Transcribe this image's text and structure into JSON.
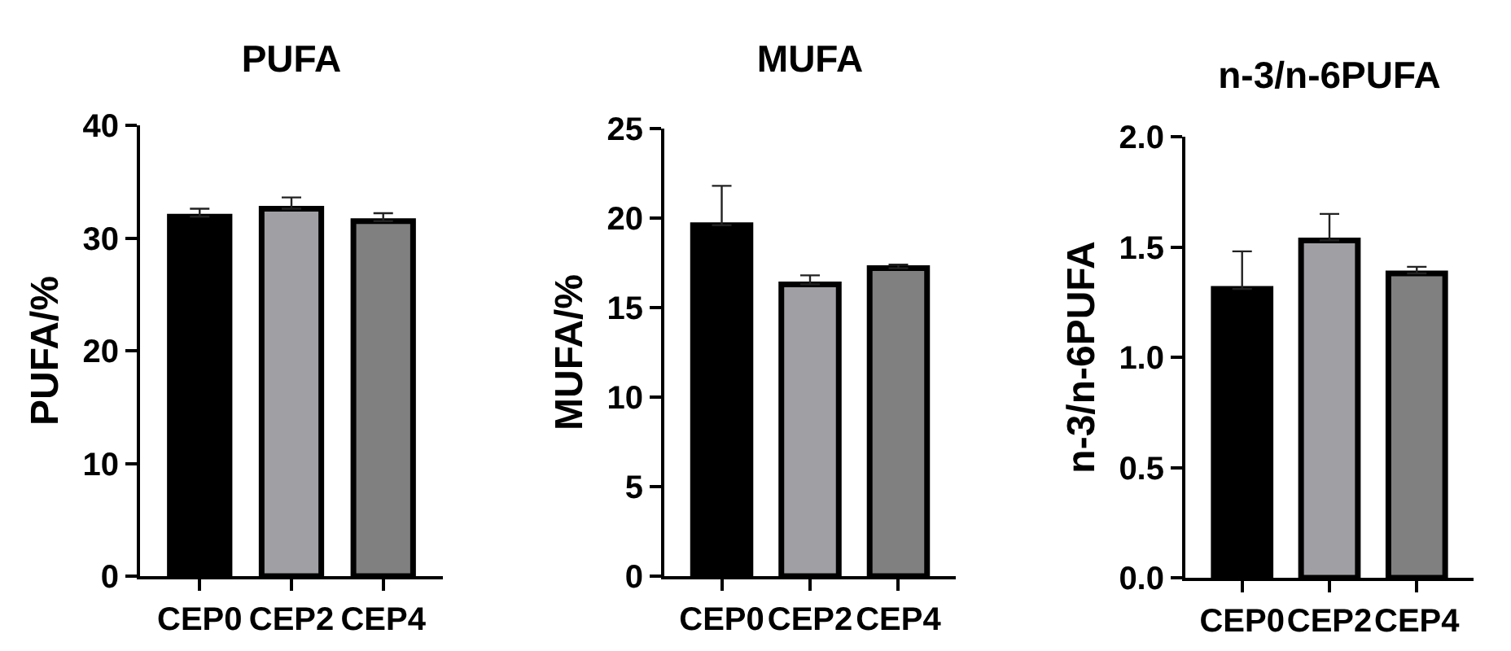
{
  "chart_data": [
    {
      "type": "bar",
      "title": "PUFA",
      "ylabel": "PUFA/%",
      "categories": [
        "CEP0",
        "CEP2",
        "CEP4"
      ],
      "values": [
        31.9,
        32.6,
        31.5
      ],
      "colors": [
        "#000000",
        "#a0a0a4",
        "#808080"
      ],
      "errors": [
        [
          31.9,
          32.6
        ],
        [
          32.6,
          33.6
        ],
        [
          31.5,
          32.2
        ]
      ],
      "ylim": [
        0,
        40
      ],
      "yticks": [
        0,
        10,
        20,
        30,
        40
      ]
    },
    {
      "type": "bar",
      "title": "MUFA",
      "ylabel": "MUFA/%",
      "categories": [
        "CEP0",
        "CEP2",
        "CEP4"
      ],
      "values": [
        19.6,
        16.3,
        17.2
      ],
      "colors": [
        "#000000",
        "#a0a0a4",
        "#808080"
      ],
      "errors": [
        [
          19.6,
          21.8
        ],
        [
          16.3,
          16.8
        ],
        [
          17.2,
          17.4
        ]
      ],
      "ylim": [
        0,
        25
      ],
      "yticks": [
        0,
        5,
        10,
        15,
        20,
        25
      ]
    },
    {
      "type": "bar",
      "title": "n-3/n-6PUFA",
      "ylabel": "n-3/n-6PUFA",
      "categories": [
        "CEP0",
        "CEP2",
        "CEP4"
      ],
      "values": [
        1.31,
        1.53,
        1.38
      ],
      "colors": [
        "#000000",
        "#a0a0a4",
        "#808080"
      ],
      "errors": [
        [
          1.31,
          1.48
        ],
        [
          1.53,
          1.65
        ],
        [
          1.38,
          1.41
        ]
      ],
      "ylim": [
        0,
        2
      ],
      "yticks": [
        {
          "value": 0,
          "label": "0.0"
        },
        {
          "value": 0.5,
          "label": "0.5"
        },
        {
          "value": 1,
          "label": "1.0"
        },
        {
          "value": 1.5,
          "label": "1.5"
        },
        {
          "value": 2,
          "label": "2.0"
        }
      ]
    }
  ]
}
